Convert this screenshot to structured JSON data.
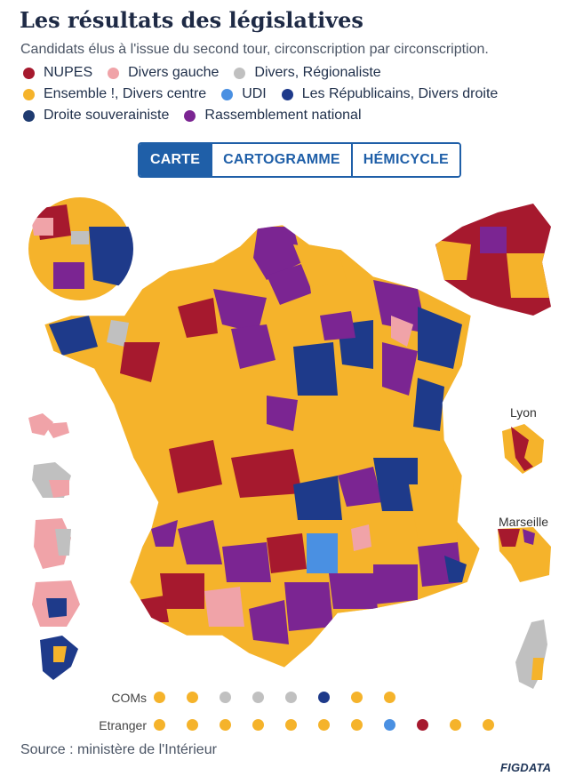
{
  "title": "Les résultats des législatives",
  "subtitle": "Candidats élus à l'issue du second tour, circonscription par circonscription.",
  "legend": [
    {
      "label": "NUPES",
      "color": "#a6192e"
    },
    {
      "label": "Divers gauche",
      "color": "#f0a3a8"
    },
    {
      "label": "Divers, Régionaliste",
      "color": "#c0c0c0"
    },
    {
      "label": "Ensemble !, Divers centre",
      "color": "#f5b32b"
    },
    {
      "label": "UDI",
      "color": "#4a90e2"
    },
    {
      "label": "Les Républicains, Divers droite",
      "color": "#1e3a8a"
    },
    {
      "label": "Droite souverainiste",
      "color": "#1f3b70"
    },
    {
      "label": "Rassemblement national",
      "color": "#7b2592"
    }
  ],
  "tabs": [
    {
      "label": "CARTE",
      "active": true
    },
    {
      "label": "CARTOGRAMME",
      "active": false
    },
    {
      "label": "HÉMICYCLE",
      "active": false
    }
  ],
  "insets": {
    "lyon": "Lyon",
    "marseille": "Marseille"
  },
  "coms": {
    "label": "COMs",
    "dots": [
      "#f5b32b",
      "#f5b32b",
      "#c0c0c0",
      "#c0c0c0",
      "#c0c0c0",
      "#1e3a8a",
      "#f5b32b",
      "#f5b32b"
    ]
  },
  "etranger": {
    "label": "Etranger",
    "dots": [
      "#f5b32b",
      "#f5b32b",
      "#f5b32b",
      "#f5b32b",
      "#f5b32b",
      "#f5b32b",
      "#f5b32b",
      "#4a90e2",
      "#a6192e",
      "#f5b32b",
      "#f5b32b"
    ]
  },
  "source": "Source : ministère de l'Intérieur",
  "brand": "FIGDATA"
}
